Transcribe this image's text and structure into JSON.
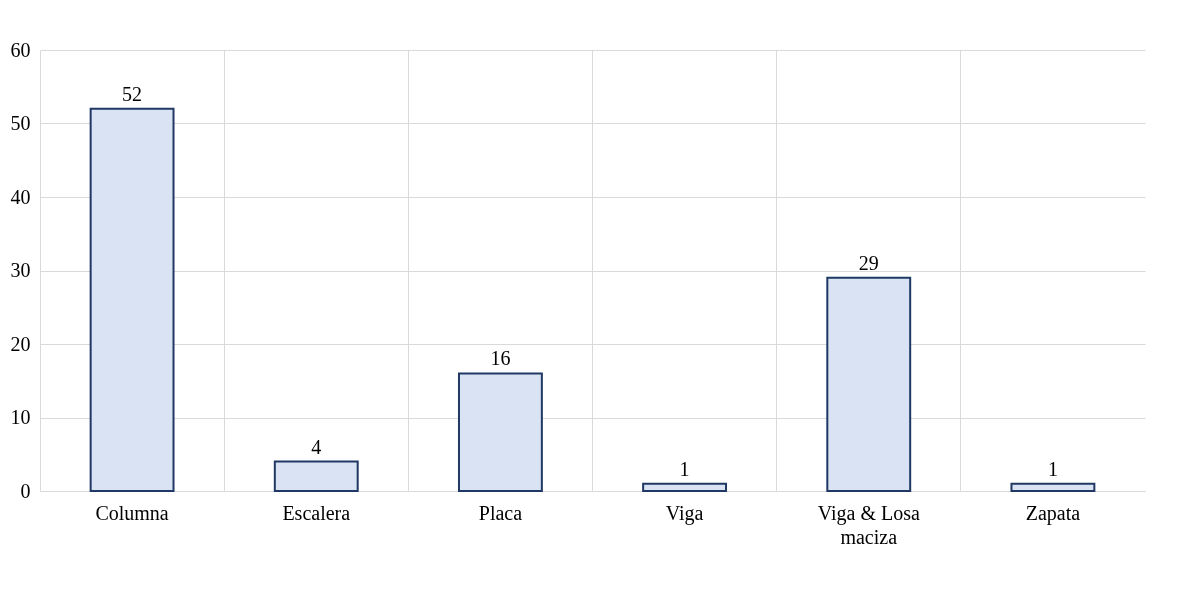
{
  "chart_data": {
    "type": "bar",
    "categories": [
      "Columna",
      "Escalera",
      "Placa",
      "Viga",
      "Viga & Losa maciza",
      "Zapata"
    ],
    "values": [
      52,
      4,
      16,
      1,
      29,
      1
    ],
    "color": "#dae3f3",
    "ylim": [
      0,
      60
    ],
    "yticks": [
      0,
      10,
      20,
      30,
      40,
      50,
      60
    ],
    "grid": true,
    "data_labels": true
  }
}
